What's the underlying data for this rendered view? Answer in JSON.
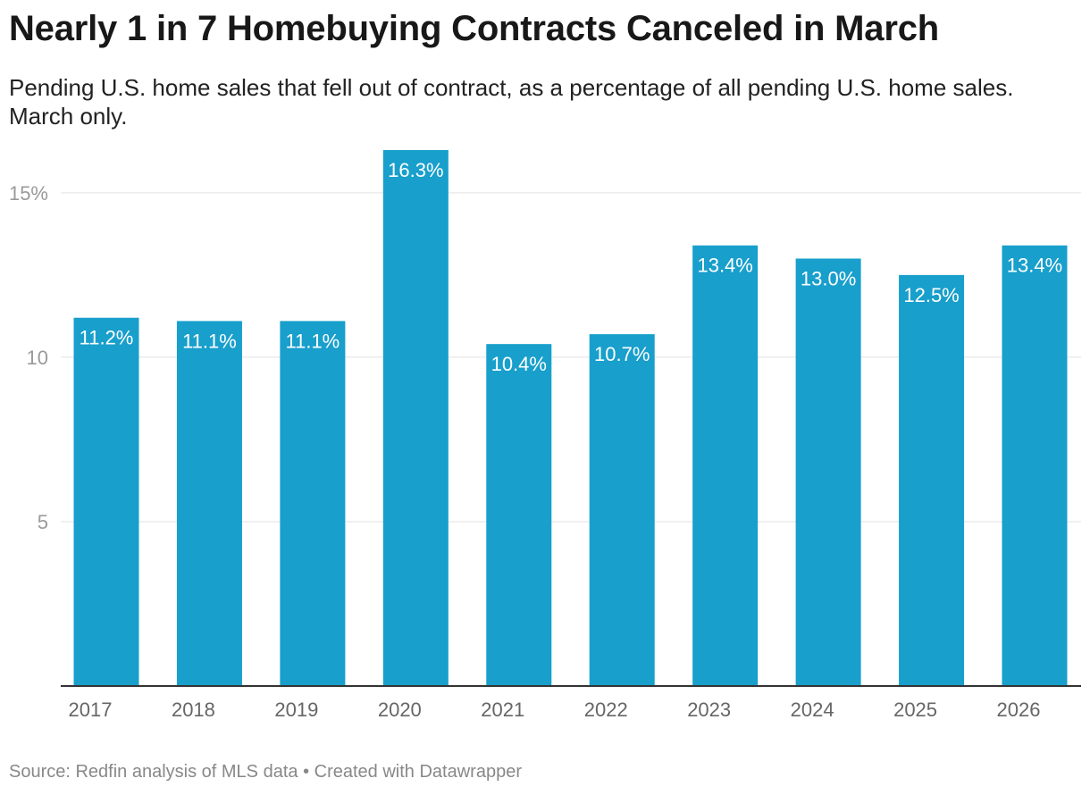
{
  "header": {
    "title": "Nearly 1 in 7 Homebuying Contracts Canceled in March",
    "subtitle": "Pending U.S. home sales that fell out of contract, as a percentage of all pending U.S. home sales. March only."
  },
  "footer": {
    "source": "Source: Redfin analysis of MLS data",
    "separator": " • ",
    "credit": "Created with Datawrapper"
  },
  "colors": {
    "bar": "#189fcc",
    "grid": "#e2e2e2",
    "baseline": "#333333"
  },
  "chart_data": {
    "type": "bar",
    "title": "Nearly 1 in 7 Homebuying Contracts Canceled in March",
    "subtitle": "Pending U.S. home sales that fell out of contract, as a percentage of all pending U.S. home sales. March only.",
    "xlabel": "",
    "ylabel": "",
    "categories": [
      "2017",
      "2018",
      "2019",
      "2020",
      "2021",
      "2022",
      "2023",
      "2024",
      "2025",
      "2026"
    ],
    "values": [
      11.2,
      11.1,
      11.1,
      16.3,
      10.4,
      10.7,
      13.4,
      13.0,
      12.5,
      13.4
    ],
    "value_labels": [
      "11.2%",
      "11.1%",
      "11.1%",
      "16.3%",
      "10.4%",
      "10.7%",
      "13.4%",
      "13.0%",
      "12.5%",
      "13.4%"
    ],
    "ylim": [
      0,
      16.3
    ],
    "y_ticks": [
      5,
      10,
      15
    ],
    "y_tick_labels": [
      "5",
      "10",
      "15%"
    ],
    "grid": true,
    "legend": "none"
  }
}
